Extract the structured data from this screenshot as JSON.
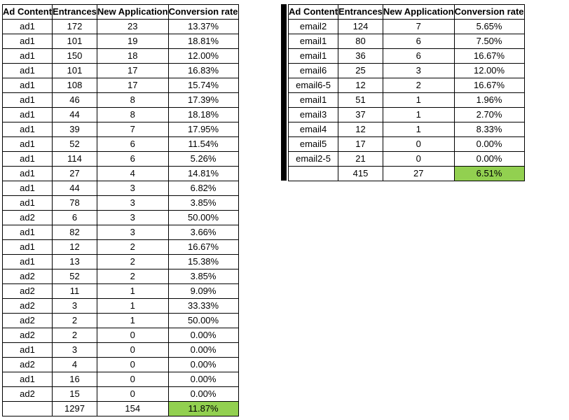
{
  "left_table": {
    "headers": [
      "Ad Content",
      "Entrances",
      "New Application",
      "Conversion rate"
    ],
    "rows": [
      [
        "ad1",
        "172",
        "23",
        "13.37%"
      ],
      [
        "ad1",
        "101",
        "19",
        "18.81%"
      ],
      [
        "ad1",
        "150",
        "18",
        "12.00%"
      ],
      [
        "ad1",
        "101",
        "17",
        "16.83%"
      ],
      [
        "ad1",
        "108",
        "17",
        "15.74%"
      ],
      [
        "ad1",
        "46",
        "8",
        "17.39%"
      ],
      [
        "ad1",
        "44",
        "8",
        "18.18%"
      ],
      [
        "ad1",
        "39",
        "7",
        "17.95%"
      ],
      [
        "ad1",
        "52",
        "6",
        "11.54%"
      ],
      [
        "ad1",
        "114",
        "6",
        "5.26%"
      ],
      [
        "ad1",
        "27",
        "4",
        "14.81%"
      ],
      [
        "ad1",
        "44",
        "3",
        "6.82%"
      ],
      [
        "ad1",
        "78",
        "3",
        "3.85%"
      ],
      [
        "ad2",
        "6",
        "3",
        "50.00%"
      ],
      [
        "ad1",
        "82",
        "3",
        "3.66%"
      ],
      [
        "ad1",
        "12",
        "2",
        "16.67%"
      ],
      [
        "ad1",
        "13",
        "2",
        "15.38%"
      ],
      [
        "ad2",
        "52",
        "2",
        "3.85%"
      ],
      [
        "ad2",
        "11",
        "1",
        "9.09%"
      ],
      [
        "ad2",
        "3",
        "1",
        "33.33%"
      ],
      [
        "ad2",
        "2",
        "1",
        "50.00%"
      ],
      [
        "ad2",
        "2",
        "0",
        "0.00%"
      ],
      [
        "ad1",
        "3",
        "0",
        "0.00%"
      ],
      [
        "ad2",
        "4",
        "0",
        "0.00%"
      ],
      [
        "ad1",
        "16",
        "0",
        "0.00%"
      ],
      [
        "ad2",
        "15",
        "0",
        "0.00%"
      ]
    ],
    "totals": [
      "",
      "1297",
      "154",
      "11.87%"
    ]
  },
  "right_table": {
    "headers": [
      "Ad Content",
      "Entrances",
      "New Application",
      "Conversion rate"
    ],
    "rows": [
      [
        "email2",
        "124",
        "7",
        "5.65%"
      ],
      [
        "email1",
        "80",
        "6",
        "7.50%"
      ],
      [
        "email1",
        "36",
        "6",
        "16.67%"
      ],
      [
        "email6",
        "25",
        "3",
        "12.00%"
      ],
      [
        "email6-5",
        "12",
        "2",
        "16.67%"
      ],
      [
        "email1",
        "51",
        "1",
        "1.96%"
      ],
      [
        "email3",
        "37",
        "1",
        "2.70%"
      ],
      [
        "email4",
        "12",
        "1",
        "8.33%"
      ],
      [
        "email5",
        "17",
        "0",
        "0.00%"
      ],
      [
        "email2-5",
        "21",
        "0",
        "0.00%"
      ]
    ],
    "totals": [
      "",
      "415",
      "27",
      "6.51%"
    ]
  },
  "colors": {
    "highlight": "#92d050",
    "grid": "#000000"
  }
}
